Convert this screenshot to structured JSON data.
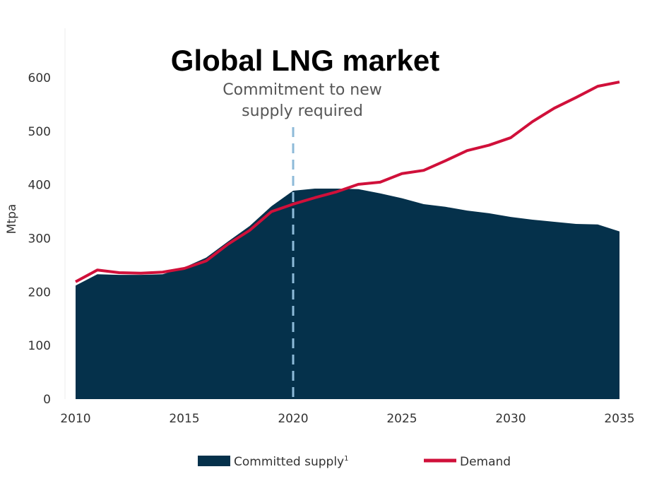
{
  "chart_data": {
    "type": "area",
    "title": "Global LNG market",
    "ylabel": "Mtpa",
    "xlabel": "",
    "xlim": [
      2010,
      2035
    ],
    "ylim": [
      0,
      600
    ],
    "x_ticks": [
      "2010",
      "2015",
      "2020",
      "2025",
      "2030",
      "2035"
    ],
    "y_ticks": [
      "0",
      "100",
      "200",
      "300",
      "400",
      "500",
      "600"
    ],
    "grid": false,
    "legend_position": "bottom",
    "annotation": {
      "lines": [
        "Commitment to new",
        "supply required"
      ],
      "x": 2020
    },
    "x": [
      2010,
      2011,
      2012,
      2013,
      2014,
      2015,
      2016,
      2017,
      2018,
      2019,
      2020,
      2021,
      2022,
      2023,
      2024,
      2025,
      2026,
      2027,
      2028,
      2029,
      2030,
      2031,
      2032,
      2033,
      2034,
      2035
    ],
    "series": [
      {
        "name": "Committed supply",
        "superscript": "1",
        "type": "area",
        "color": "#05314b",
        "values": [
          212,
          233,
          232,
          232,
          233,
          246,
          264,
          294,
          323,
          360,
          389,
          393,
          393,
          392,
          384,
          375,
          364,
          359,
          352,
          347,
          340,
          335,
          331,
          327,
          326,
          313
        ]
      },
      {
        "name": "Demand",
        "type": "line",
        "color": "#d0103a",
        "values": [
          219,
          241,
          236,
          235,
          237,
          244,
          258,
          289,
          315,
          350,
          364,
          376,
          387,
          401,
          405,
          421,
          427,
          445,
          464,
          474,
          488,
          518,
          543,
          563,
          584,
          592
        ]
      }
    ]
  }
}
